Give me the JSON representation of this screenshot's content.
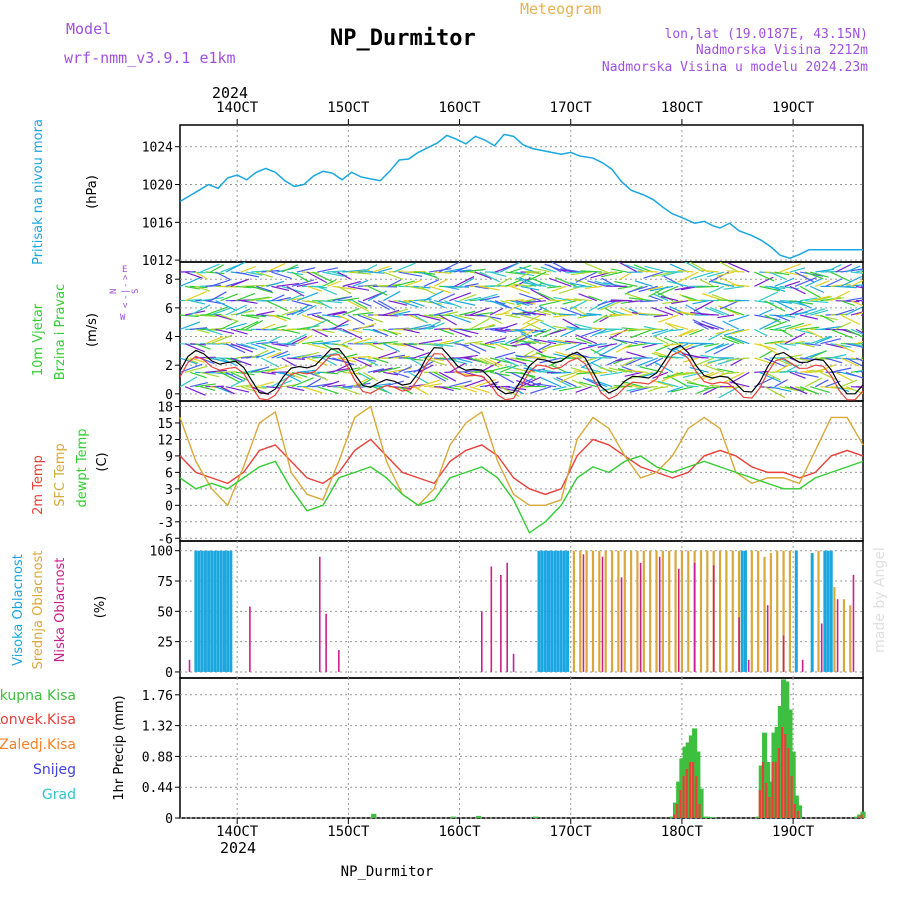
{
  "header": {
    "model_label": "Model",
    "model_name": "wrf-nmm_v3.9.1 e1km",
    "title": "NP_Durmitor",
    "subtitle": "Meteogram",
    "coords": "lon,lat (19.0187E, 43.15N)",
    "elevation": "Nadmorska Visina 2212m",
    "model_elevation": "Nadmorska Visina u modelu 2024.23m",
    "footer_title": "NP_Durmitor",
    "watermark": "made by Angel"
  },
  "colors": {
    "pressure": "#1aa7e0",
    "temp2m": "#e8413b",
    "sfc": "#d8a93a",
    "dewpt": "#33cc33",
    "high_cloud": "#1aa7e0",
    "mid_cloud": "#d8a93a",
    "low_cloud": "#cc1f8e",
    "total_precip": "#3fbf3f",
    "conv_precip": "#e8413b",
    "frz_precip": "#ff7f27",
    "snow": "#4040e0",
    "hail": "#2ec7c7",
    "header_purple": "#a050e0",
    "meteogram_orange": "#e8b050"
  },
  "axes": {
    "year_top": "2024",
    "year_bottom": "2024",
    "date_ticks": [
      "14OCT",
      "15OCT",
      "16OCT",
      "17OCT",
      "18OCT",
      "19OCT"
    ]
  },
  "panels": {
    "pressure": {
      "ylabel": "Pritisak na nivou mora",
      "unit": "(hPa)",
      "ticks": [
        "1012",
        "1016",
        "1020",
        "1024"
      ]
    },
    "wind": {
      "ylabel1": "10m Vjetar",
      "ylabel2": "Brzina i Pravac",
      "unit": "(m/s)",
      "compass_w": "W",
      "compass_e": "E",
      "compass_n": "N",
      "compass_s": "S",
      "ticks": [
        "0",
        "2",
        "4",
        "6",
        "8"
      ]
    },
    "temp": {
      "label_2m": "2m Temp",
      "label_sfc": "SFC Temp",
      "label_dew": "dewpt Temp",
      "unit": "(C)",
      "ticks": [
        "-6",
        "-3",
        "0",
        "3",
        "6",
        "9",
        "12",
        "15",
        "18"
      ]
    },
    "cloud": {
      "label_high": "Visoka Oblacnost",
      "label_mid": "Srednja Oblacnost",
      "label_low": "Niska Oblacnost",
      "unit": "(%)",
      "ticks": [
        "0",
        "25",
        "50",
        "75",
        "100"
      ]
    },
    "precip": {
      "ylabel": "1hr Precip (mm)",
      "ticks": [
        "0",
        "0.44",
        "0.88",
        "1.32",
        "1.76"
      ],
      "legend": [
        "Ukupna Kisa",
        "Konvek.Kisa",
        "Zaledj.Kisa",
        "Snijeg",
        "Grad"
      ]
    }
  },
  "chart_data": [
    {
      "type": "line",
      "title": "Pritisak na nivou mora",
      "ylabel": "(hPa)",
      "ylim": [
        1011.8,
        1026.3
      ],
      "x_unit": "days since 13OCT 12UTC",
      "x": [
        0,
        0.3,
        0.6,
        0.9,
        1.2,
        1.5,
        1.8,
        2.1,
        2.4,
        2.7,
        3.0,
        3.3,
        3.6,
        3.9,
        4.2,
        4.5,
        4.8,
        5.1,
        5.4,
        5.7,
        6.0,
        6.3,
        6.6,
        6.9,
        7.2,
        7.5,
        7.8,
        8.1,
        8.4,
        8.7,
        9.0,
        9.3,
        9.6,
        9.9,
        10.2,
        10.5,
        10.8,
        11.1,
        11.4,
        11.7,
        12.0,
        12.3,
        12.6,
        13.0,
        13.3,
        13.6,
        13.9,
        14.2,
        14.6,
        14.9,
        15.2,
        15.5,
        15.8,
        16.2,
        16.5,
        16.8,
        17.0,
        17.3,
        17.6,
        18.0,
        18.3,
        18.6,
        18.9,
        19.2,
        19.5,
        19.8,
        20.1,
        20.4,
        20.7,
        21.0,
        21.3,
        21.5
      ],
      "values": [
        1018.2,
        1018.8,
        1019.4,
        1020.0,
        1019.6,
        1020.7,
        1021.0,
        1020.5,
        1021.3,
        1021.7,
        1021.3,
        1020.4,
        1019.8,
        1020.0,
        1020.9,
        1021.4,
        1021.2,
        1020.5,
        1021.3,
        1020.8,
        1020.6,
        1020.4,
        1021.4,
        1022.6,
        1022.7,
        1023.4,
        1023.9,
        1024.4,
        1025.2,
        1024.8,
        1024.3,
        1025.1,
        1024.7,
        1024.1,
        1025.3,
        1025.1,
        1024.2,
        1023.8,
        1023.6,
        1023.4,
        1023.2,
        1023.4,
        1023.0,
        1022.8,
        1022.3,
        1021.6,
        1020.3,
        1019.4,
        1018.9,
        1018.4,
        1017.6,
        1016.9,
        1016.5,
        1015.9,
        1016.1,
        1015.6,
        1015.4,
        1015.9,
        1015.1,
        1014.6,
        1014.1,
        1013.4,
        1012.5,
        1012.2,
        1012.6,
        1013.1,
        1013.1,
        1013.1,
        1013.1,
        1013.1,
        1013.1,
        1013.1
      ]
    },
    {
      "type": "line",
      "title": "Temp",
      "ylabel": "(C)",
      "ylim": [
        -6.5,
        19
      ],
      "x_unit": "days since 13OCT 12UTC",
      "x": [
        0,
        0.5,
        1.0,
        1.5,
        2.0,
        2.5,
        3.0,
        3.5,
        4.0,
        4.5,
        5.0,
        5.5,
        6.0,
        6.5,
        7.0,
        7.5,
        8.0,
        8.5,
        9.0,
        9.5,
        10.0,
        10.5,
        11.0,
        11.5,
        12.0,
        12.5,
        13.0,
        13.5,
        14.0,
        14.5,
        15.0,
        15.5,
        16.0,
        16.5,
        17.0,
        17.5,
        18.0,
        18.5,
        19.0,
        19.5,
        20.0,
        20.5,
        21.0,
        21.5
      ],
      "series": [
        {
          "name": "2m Temp",
          "values": [
            9,
            6,
            5,
            4,
            6,
            10,
            11,
            8,
            5,
            4,
            6,
            10,
            12,
            9,
            6,
            5,
            4,
            8,
            10,
            11,
            9,
            5,
            3,
            2,
            3,
            9,
            12,
            11,
            9,
            7,
            6,
            5,
            6,
            9,
            10,
            9,
            7,
            6,
            6,
            5,
            6,
            9,
            10,
            9
          ]
        },
        {
          "name": "SFC Temp",
          "values": [
            16,
            8,
            3,
            0,
            7,
            15,
            17,
            6,
            2,
            1,
            8,
            16,
            18,
            8,
            2,
            0,
            3,
            11,
            15,
            17,
            8,
            2,
            0,
            0,
            1,
            12,
            16,
            14,
            9,
            5,
            6,
            9,
            14,
            16,
            14,
            6,
            4,
            5,
            5,
            4,
            10,
            16,
            16,
            11
          ]
        },
        {
          "name": "dewpt Temp",
          "values": [
            5,
            3,
            4,
            3,
            5,
            7,
            8,
            3,
            -1,
            0,
            5,
            6,
            7,
            5,
            2,
            0,
            1,
            5,
            6,
            7,
            5,
            1,
            -5,
            -3,
            0,
            5,
            7,
            6,
            8,
            9,
            7,
            6,
            7,
            8,
            7,
            6,
            5,
            4,
            3,
            3,
            5,
            6,
            7,
            8
          ]
        }
      ]
    },
    {
      "type": "bar",
      "title": "Oblacnost",
      "ylabel": "(%)",
      "ylim": [
        0,
        100
      ],
      "x_unit": "days since 13OCT 12UTC",
      "series": [
        {
          "name": "Visoka Oblacnost",
          "x": [
            0.5,
            0.6,
            0.7,
            0.8,
            0.9,
            1.0,
            1.1,
            1.2,
            1.3,
            1.4,
            1.5,
            1.6,
            11.3,
            11.4,
            11.5,
            11.6,
            11.7,
            11.8,
            11.9,
            12.0,
            12.1,
            12.2,
            17.7,
            17.8,
            19.4,
            19.9,
            20.3,
            20.4,
            20.5
          ],
          "values": [
            100,
            100,
            100,
            100,
            100,
            100,
            100,
            100,
            100,
            100,
            100,
            100,
            100,
            100,
            100,
            100,
            100,
            100,
            100,
            100,
            100,
            100,
            100,
            100,
            100,
            98,
            100,
            100,
            100
          ]
        },
        {
          "name": "Srednja Oblacnost",
          "x": [
            12.4,
            12.6,
            12.8,
            13.0,
            13.2,
            13.4,
            13.6,
            13.8,
            14.0,
            14.2,
            14.4,
            14.6,
            14.8,
            15.0,
            15.2,
            15.4,
            15.6,
            15.8,
            16.0,
            16.2,
            16.4,
            16.6,
            16.8,
            17.0,
            17.2,
            17.4,
            17.6,
            18.0,
            18.2,
            18.4,
            18.6,
            18.8,
            19.0,
            19.2,
            20.1,
            20.6,
            20.9,
            21.1
          ],
          "values": [
            100,
            100,
            100,
            100,
            100,
            100,
            100,
            100,
            100,
            100,
            100,
            100,
            100,
            100,
            100,
            100,
            100,
            100,
            100,
            100,
            100,
            100,
            100,
            100,
            100,
            100,
            100,
            100,
            100,
            95,
            98,
            100,
            100,
            100,
            100,
            70,
            60,
            55
          ]
        },
        {
          "name": "Niska Oblacnost",
          "x": [
            0.3,
            2.2,
            4.4,
            4.6,
            5.0,
            9.5,
            9.8,
            10.1,
            10.3,
            10.5,
            12.7,
            13.3,
            13.9,
            14.5,
            15.1,
            15.7,
            16.2,
            16.8,
            17.6,
            17.9,
            18.5,
            19.0,
            19.6,
            20.2,
            20.7,
            21.2
          ],
          "values": [
            10,
            54,
            95,
            48,
            18,
            50,
            87,
            80,
            90,
            15,
            97,
            95,
            78,
            90,
            95,
            85,
            90,
            88,
            45,
            10,
            55,
            30,
            10,
            40,
            60,
            80
          ]
        }
      ]
    },
    {
      "type": "bar",
      "title": "1hr Precip",
      "ylabel": "1hr Precip (mm)",
      "ylim": [
        0,
        2.0
      ],
      "x_unit": "days since 13OCT 12UTC",
      "x": [
        6.1,
        8.6,
        9.4,
        11.2,
        15.5,
        15.6,
        15.7,
        15.8,
        15.9,
        16.0,
        16.1,
        16.2,
        16.3,
        16.4,
        16.5,
        16.6,
        16.7,
        16.8,
        18.2,
        18.3,
        18.4,
        18.5,
        18.6,
        18.7,
        18.8,
        18.9,
        19.0,
        19.1,
        19.2,
        19.3,
        19.4,
        19.5,
        21.3,
        21.4,
        21.5
      ],
      "series": [
        {
          "name": "Ukupna Kisa",
          "values": [
            0.06,
            0.02,
            0.03,
            0.02,
            0.02,
            0.22,
            0.52,
            0.85,
            1.02,
            1.08,
            1.18,
            1.28,
            0.95,
            0.42,
            0.02,
            0.02,
            0.01,
            0.01,
            0.02,
            0.75,
            1.22,
            0.8,
            0.52,
            1.22,
            1.3,
            1.6,
            1.98,
            1.95,
            1.55,
            0.95,
            0.32,
            0.18,
            0.02,
            0.05,
            0.09
          ]
        },
        {
          "name": "Konvek.Kisa",
          "values": [
            0,
            0,
            0,
            0,
            0,
            0.05,
            0.2,
            0.4,
            0.6,
            0.7,
            0.8,
            0.8,
            0.6,
            0.2,
            0,
            0,
            0,
            0,
            0,
            0.4,
            0.8,
            0.5,
            0.3,
            0.8,
            0.8,
            1.0,
            1.3,
            1.2,
            1.0,
            0.6,
            0.2,
            0.1,
            0,
            0.02,
            0.05
          ]
        }
      ]
    }
  ]
}
